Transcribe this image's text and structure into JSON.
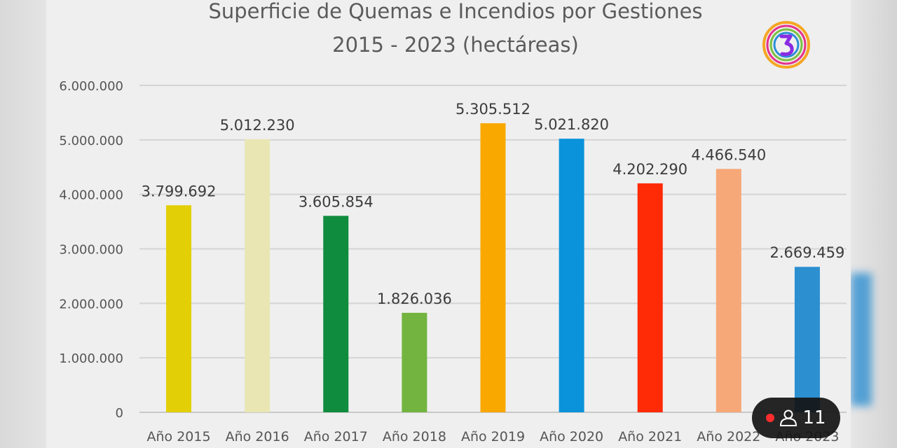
{
  "chart_data": {
    "type": "bar",
    "title": "Superficie de Quemas e Incendios por Gestiones",
    "subtitle": "2015 - 2023 (hectáreas)",
    "categories": [
      "Año 2015",
      "Año 2016",
      "Año 2017",
      "Año 2018",
      "Año 2019",
      "Año 2020",
      "Año 2021",
      "Año 2022",
      "Año 2023"
    ],
    "values": [
      3799692,
      5012230,
      3605854,
      1826036,
      5305512,
      5021820,
      4202290,
      4466540,
      2669459
    ],
    "value_labels": [
      "3.799.692",
      "5.012.230",
      "3.605.854",
      "1.826.036",
      "5.305.512",
      "5.021.820",
      "4.202.290",
      "4.466.540",
      "2.669.459"
    ],
    "colors": [
      "#e2cf05",
      "#e9e6b4",
      "#0f8c3d",
      "#72b43f",
      "#f9a800",
      "#0a93db",
      "#ff2a06",
      "#f7a878",
      "#2b8fd0"
    ],
    "yticks": [
      0,
      1000000,
      2000000,
      3000000,
      4000000,
      5000000,
      6000000
    ],
    "ytick_labels": [
      "0",
      "1.000.000",
      "2.000.000",
      "3.000.000",
      "4.000.000",
      "5.000.000",
      "6.000.000"
    ],
    "ylim": [
      0,
      6000000
    ],
    "grid": true,
    "xlabel": "",
    "ylabel": ""
  },
  "overlay": {
    "viewer_count": "11",
    "icons": [
      "logo-3-icon",
      "live-dot-icon",
      "viewer-person-icon"
    ]
  }
}
